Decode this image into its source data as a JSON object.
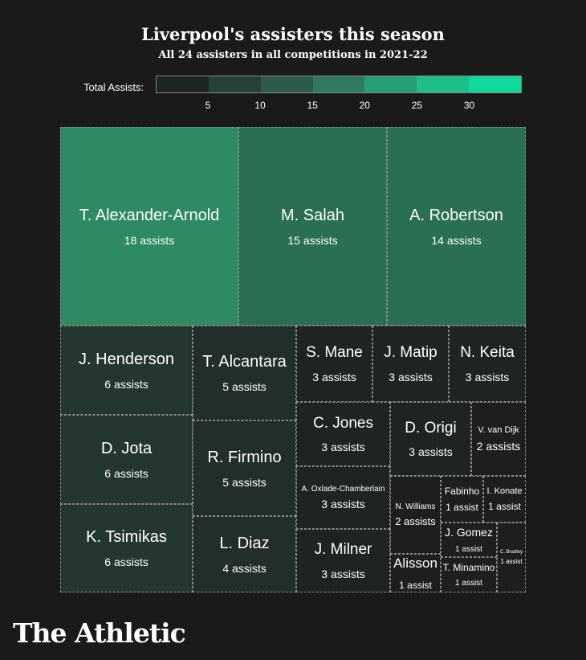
{
  "chart_data": {
    "type": "treemap",
    "title": "Liverpool's assisters this season",
    "subtitle": "All 24 assisters in all competitions in 2021-22",
    "legend": {
      "label": "Total Assists:",
      "ticks": [
        "5",
        "10",
        "15",
        "20",
        "25",
        "30"
      ],
      "colors": [
        "#1e2420",
        "#26413a",
        "#2b5c4b",
        "#2e7a5e",
        "#289e75",
        "#1dbf88",
        "#0fd99a"
      ]
    },
    "items": [
      {
        "name": "T. Alexander-Arnold",
        "value": 18,
        "label": "18 assists"
      },
      {
        "name": "M. Salah",
        "value": 15,
        "label": "15 assists"
      },
      {
        "name": "A. Robertson",
        "value": 14,
        "label": "14 assists"
      },
      {
        "name": "J. Henderson",
        "value": 6,
        "label": "6 assists"
      },
      {
        "name": "D. Jota",
        "value": 6,
        "label": "6 assists"
      },
      {
        "name": "K. Tsimikas",
        "value": 6,
        "label": "6 assists"
      },
      {
        "name": "T. Alcantara",
        "value": 5,
        "label": "5 assists"
      },
      {
        "name": "R. Firmino",
        "value": 5,
        "label": "5 assists"
      },
      {
        "name": "L. Diaz",
        "value": 4,
        "label": "4 assists"
      },
      {
        "name": "S. Mane",
        "value": 3,
        "label": "3 assists"
      },
      {
        "name": "J. Matip",
        "value": 3,
        "label": "3 assists"
      },
      {
        "name": "N. Keita",
        "value": 3,
        "label": "3 assists"
      },
      {
        "name": "C. Jones",
        "value": 3,
        "label": "3 assists"
      },
      {
        "name": "A. Oxlade-Chamberlain",
        "value": 3,
        "label": "3 assists"
      },
      {
        "name": "J. Milner",
        "value": 3,
        "label": "3 assists"
      },
      {
        "name": "D. Origi",
        "value": 3,
        "label": "3 assists"
      },
      {
        "name": "V. van Dijk",
        "value": 2,
        "label": "2 assists"
      },
      {
        "name": "N. Williams",
        "value": 2,
        "label": "2 assists"
      },
      {
        "name": "Alisson",
        "value": 1,
        "label": "1 assist"
      },
      {
        "name": "Fabinho",
        "value": 1,
        "label": "1 assist"
      },
      {
        "name": "I. Konate",
        "value": 1,
        "label": "1 assist"
      },
      {
        "name": "J. Gomez",
        "value": 1,
        "label": "1 assist"
      },
      {
        "name": "T. Minamino",
        "value": 1,
        "label": "1 assist"
      },
      {
        "name": "C. Bradley",
        "value": 1,
        "label": "1 assist"
      }
    ]
  },
  "brand": "The Athletic"
}
